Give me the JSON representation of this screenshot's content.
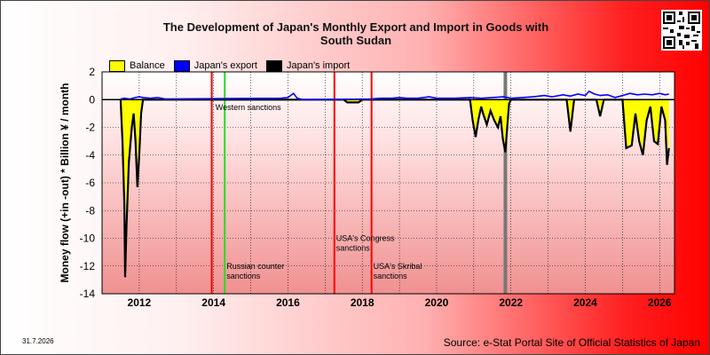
{
  "chart_data": {
    "type": "area",
    "title": "The Development of Japan's Monthly Export and Import in Goods with South Sudan",
    "title_lines": [
      "The Development of Japan's Monthly Export and Import in Goods with",
      "South Sudan"
    ],
    "ylabel": "Money flow (+in -out) * Billion ¥ / month",
    "xlabel": "",
    "x_ticks": [
      "2012",
      "2014",
      "2016",
      "2018",
      "2020",
      "2022",
      "2024",
      "2026"
    ],
    "x_range": [
      2011.0,
      2026.4
    ],
    "y_ticks": [
      2,
      0,
      -2,
      -4,
      -6,
      -8,
      -10,
      -12,
      -14
    ],
    "ylim": [
      -14,
      2
    ],
    "grid": true,
    "legend": [
      {
        "name": "Balance",
        "color": "#ffff00"
      },
      {
        "name": "Japan's export",
        "color": "#0000ff"
      },
      {
        "name": "Japan's import",
        "color": "#000000"
      }
    ],
    "legend_position": "top-left",
    "series": [
      {
        "name": "Japan's export",
        "color": "#0000ff",
        "points": [
          [
            2011.5,
            0.05
          ],
          [
            2011.6,
            0.1
          ],
          [
            2011.75,
            0.05
          ],
          [
            2011.9,
            0.15
          ],
          [
            2012.0,
            0.2
          ],
          [
            2012.1,
            0.15
          ],
          [
            2012.3,
            0.1
          ],
          [
            2012.5,
            0.15
          ],
          [
            2012.7,
            0.05
          ],
          [
            2015.8,
            0.1
          ],
          [
            2016.0,
            0.15
          ],
          [
            2016.15,
            0.45
          ],
          [
            2016.25,
            0.1
          ],
          [
            2016.4,
            0.0
          ],
          [
            2018.2,
            0.05
          ],
          [
            2018.5,
            0.1
          ],
          [
            2018.8,
            0.1
          ],
          [
            2019.0,
            0.15
          ],
          [
            2019.2,
            0.1
          ],
          [
            2019.5,
            0.1
          ],
          [
            2019.8,
            0.2
          ],
          [
            2020.0,
            0.1
          ],
          [
            2020.5,
            0.1
          ],
          [
            2020.9,
            0.15
          ],
          [
            2021.2,
            0.1
          ],
          [
            2021.5,
            0.15
          ],
          [
            2021.8,
            0.2
          ],
          [
            2022.0,
            0.1
          ],
          [
            2022.3,
            0.15
          ],
          [
            2022.6,
            0.2
          ],
          [
            2022.9,
            0.3
          ],
          [
            2023.1,
            0.2
          ],
          [
            2023.4,
            0.35
          ],
          [
            2023.6,
            0.25
          ],
          [
            2023.8,
            0.4
          ],
          [
            2024.0,
            0.3
          ],
          [
            2024.1,
            0.6
          ],
          [
            2024.25,
            0.4
          ],
          [
            2024.4,
            0.3
          ],
          [
            2024.6,
            0.35
          ],
          [
            2024.8,
            0.15
          ],
          [
            2025.0,
            0.3
          ],
          [
            2025.2,
            0.45
          ],
          [
            2025.4,
            0.35
          ],
          [
            2025.6,
            0.4
          ],
          [
            2025.8,
            0.35
          ],
          [
            2026.0,
            0.45
          ],
          [
            2026.15,
            0.35
          ],
          [
            2026.25,
            0.4
          ]
        ]
      },
      {
        "name": "Japan's import",
        "color": "#000000",
        "points": [
          [
            2011.5,
            0.0
          ],
          [
            2011.55,
            -3.0
          ],
          [
            2011.6,
            -7.5
          ],
          [
            2011.62,
            -12.8
          ],
          [
            2011.66,
            -9.0
          ],
          [
            2011.72,
            -4.5
          ],
          [
            2011.8,
            -2.0
          ],
          [
            2011.85,
            -1.0
          ],
          [
            2011.9,
            -3.0
          ],
          [
            2011.95,
            -6.3
          ],
          [
            2012.0,
            -4.0
          ],
          [
            2012.05,
            -1.0
          ],
          [
            2012.1,
            0.0
          ],
          [
            2014.0,
            0.0
          ],
          [
            2017.5,
            0.0
          ],
          [
            2017.6,
            -0.2
          ],
          [
            2017.9,
            -0.2
          ],
          [
            2018.0,
            0.0
          ],
          [
            2020.9,
            0.0
          ],
          [
            2020.97,
            -1.5
          ],
          [
            2021.05,
            -2.7
          ],
          [
            2021.12,
            -1.5
          ],
          [
            2021.2,
            -0.5
          ],
          [
            2021.25,
            -1.0
          ],
          [
            2021.35,
            -1.8
          ],
          [
            2021.45,
            -0.8
          ],
          [
            2021.55,
            -1.5
          ],
          [
            2021.65,
            -2.0
          ],
          [
            2021.72,
            -1.2
          ],
          [
            2021.78,
            -2.8
          ],
          [
            2021.85,
            -3.8
          ],
          [
            2021.9,
            -2.0
          ],
          [
            2021.95,
            -0.3
          ],
          [
            2022.0,
            0.0
          ],
          [
            2023.5,
            0.0
          ],
          [
            2023.6,
            -2.3
          ],
          [
            2023.7,
            0.0
          ],
          [
            2024.3,
            0.0
          ],
          [
            2024.4,
            -1.2
          ],
          [
            2024.5,
            0.0
          ],
          [
            2025.0,
            0.0
          ],
          [
            2025.1,
            -3.5
          ],
          [
            2025.25,
            -3.3
          ],
          [
            2025.35,
            -1.0
          ],
          [
            2025.45,
            -3.0
          ],
          [
            2025.55,
            -4.0
          ],
          [
            2025.65,
            -1.5
          ],
          [
            2025.75,
            -0.5
          ],
          [
            2025.85,
            -3.0
          ],
          [
            2025.95,
            -3.2
          ],
          [
            2026.05,
            -0.5
          ],
          [
            2026.15,
            -1.5
          ],
          [
            2026.2,
            -4.7
          ],
          [
            2026.25,
            -3.5
          ]
        ]
      }
    ],
    "events": [
      {
        "x": 2013.95,
        "color": "#ff0000",
        "label": "",
        "label_y": 0
      },
      {
        "x": 2014.3,
        "color": "#22dd22",
        "label": "Russian counter sanctions",
        "label_y": -12.2
      },
      {
        "x": 2017.25,
        "color": "#ff0000",
        "label": "USA's Congress sanctions",
        "label_y": -10.2
      },
      {
        "x": 2018.25,
        "color": "#ff0000",
        "label": "USA's Skribal sanctions",
        "label_y": -12.2
      },
      {
        "x": 2021.85,
        "color": "#777777",
        "label": "",
        "label_y": 0
      }
    ],
    "annotations": [
      {
        "text": "Western sanctions",
        "x": 2014.05,
        "y": -0.5
      }
    ]
  },
  "footer": {
    "date": "31.7.2026",
    "source": "Source: e-Stat Portal Site of Official Statistics of Japan"
  },
  "colors": {
    "balance": "#ffff00",
    "export": "#0000ff",
    "import": "#000000"
  }
}
